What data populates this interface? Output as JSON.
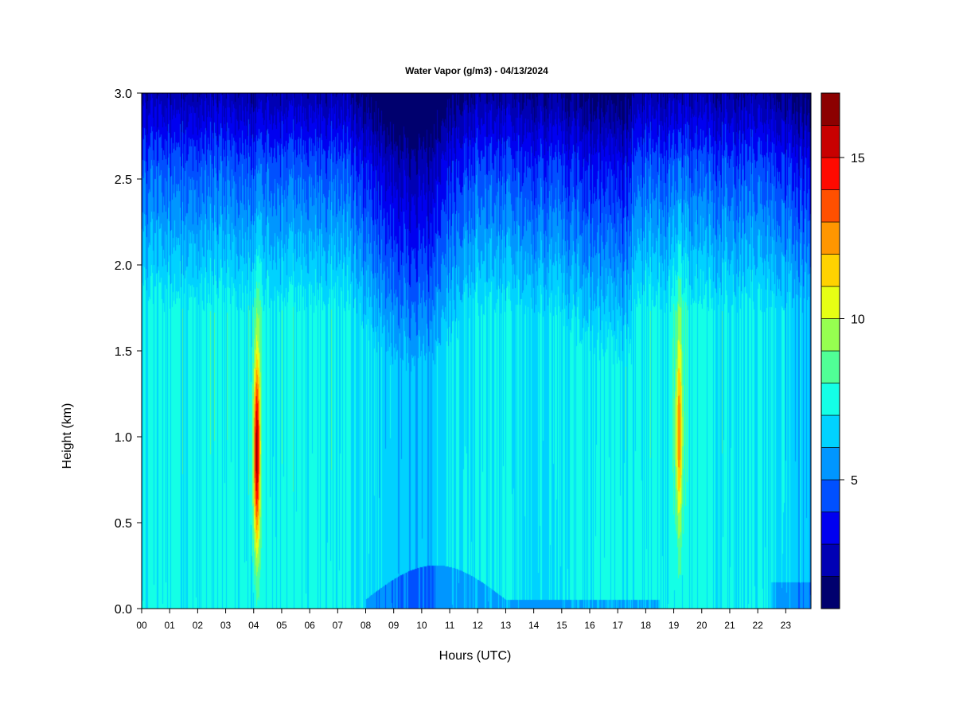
{
  "chart_data": {
    "type": "heatmap",
    "title": "Water Vapor (g/m3) - 04/13/2024",
    "xlabel": "Hours (UTC)",
    "ylabel": "Height (km)",
    "x_ticks": [
      "00",
      "01",
      "02",
      "03",
      "04",
      "05",
      "06",
      "07",
      "08",
      "09",
      "10",
      "11",
      "12",
      "13",
      "14",
      "15",
      "16",
      "17",
      "18",
      "19",
      "20",
      "21",
      "22",
      "23"
    ],
    "xlim": [
      0,
      23.9
    ],
    "ylim": [
      0,
      3.0
    ],
    "y_ticks": [
      "0.0",
      "0.5",
      "1.0",
      "1.5",
      "2.0",
      "2.5",
      "3.0"
    ],
    "y_tick_values": [
      0,
      0.5,
      1.0,
      1.5,
      2.0,
      2.5,
      3.0
    ],
    "colorbar": {
      "range": [
        1,
        17
      ],
      "levels": [
        1,
        2,
        3,
        4,
        5,
        6,
        7,
        8,
        9,
        10,
        11,
        12,
        13,
        14,
        15,
        16,
        17
      ],
      "tick_labels": [
        "5",
        "10",
        "15"
      ],
      "tick_values": [
        5,
        10,
        15
      ],
      "colors": [
        "#00006e",
        "#0000b4",
        "#0000f0",
        "#0050ff",
        "#0096ff",
        "#00d2ff",
        "#14ffe6",
        "#50ff96",
        "#96ff50",
        "#e6ff14",
        "#ffd200",
        "#ff9600",
        "#ff5000",
        "#ff0a00",
        "#c80000",
        "#8c0000"
      ]
    },
    "plumes": [
      {
        "hour": 4.1,
        "width": 0.12,
        "peak_height": 0.9,
        "peak_value": 16.0
      },
      {
        "hour": 19.2,
        "width": 0.14,
        "peak_height": 1.0,
        "peak_value": 12.0
      }
    ]
  }
}
